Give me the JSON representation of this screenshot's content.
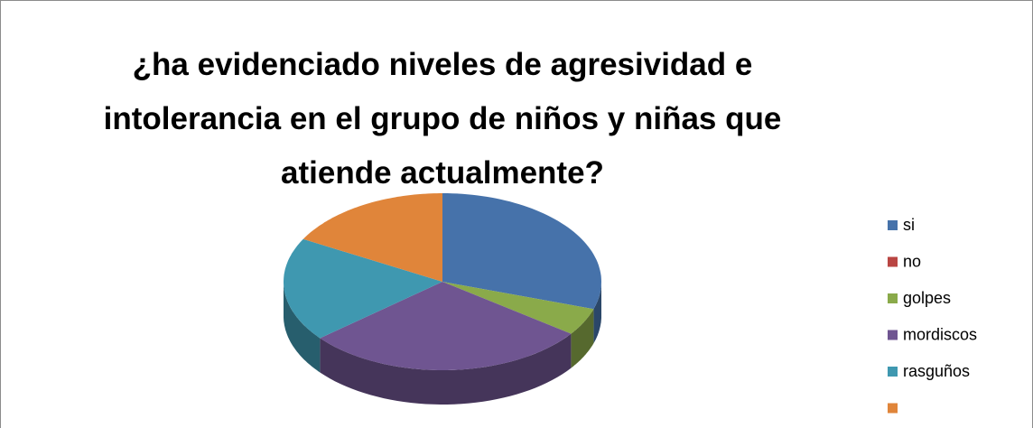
{
  "chart_data": {
    "type": "pie3d",
    "title": "¿ha evidenciado niveles de agresividad e\nintolerancia en el grupo de niños y niñas que\natiende actualmente?",
    "categories": [
      "si",
      "no",
      "golpes",
      "mordiscos",
      "rasguños",
      null
    ],
    "values": [
      30,
      0,
      5,
      29,
      19,
      17
    ],
    "colors": [
      "#4672aa",
      "#b94542",
      "#8aaa4a",
      "#6f5591",
      "#3f98b0",
      "#e0853a"
    ],
    "legend": "right"
  }
}
